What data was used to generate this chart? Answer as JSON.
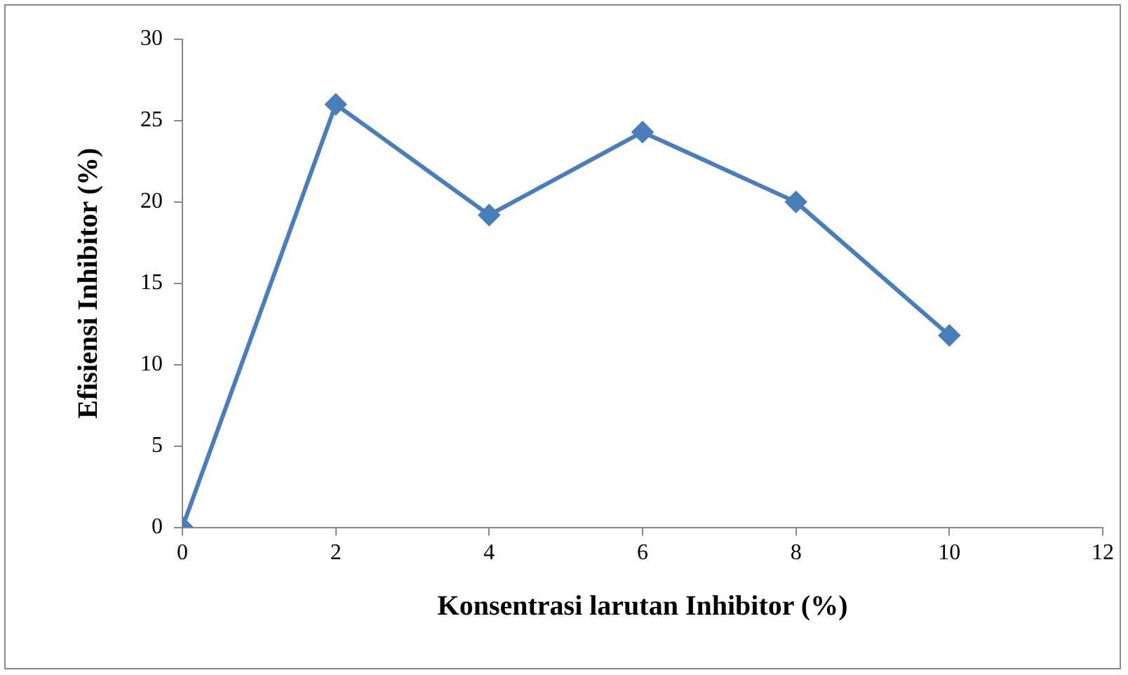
{
  "chart_data": {
    "type": "line",
    "xlabel": "Konsentrasi larutan Inhibitor (%)",
    "ylabel": "Efisiensi Inhibitor (%)",
    "x": [
      0,
      2,
      4,
      6,
      8,
      10
    ],
    "series": [
      {
        "color": "#4a7ebb",
        "values": [
          0,
          26,
          19.2,
          24.3,
          20,
          11.8
        ]
      }
    ],
    "xlim": [
      0,
      12
    ],
    "xticks": [
      0,
      2,
      4,
      6,
      8,
      10,
      12
    ],
    "ylim": [
      0,
      30
    ],
    "yticks": [
      0,
      5,
      10,
      15,
      20,
      25,
      30
    ],
    "grid": false,
    "legend": false,
    "marker": "diamond",
    "line_style": "solid"
  }
}
